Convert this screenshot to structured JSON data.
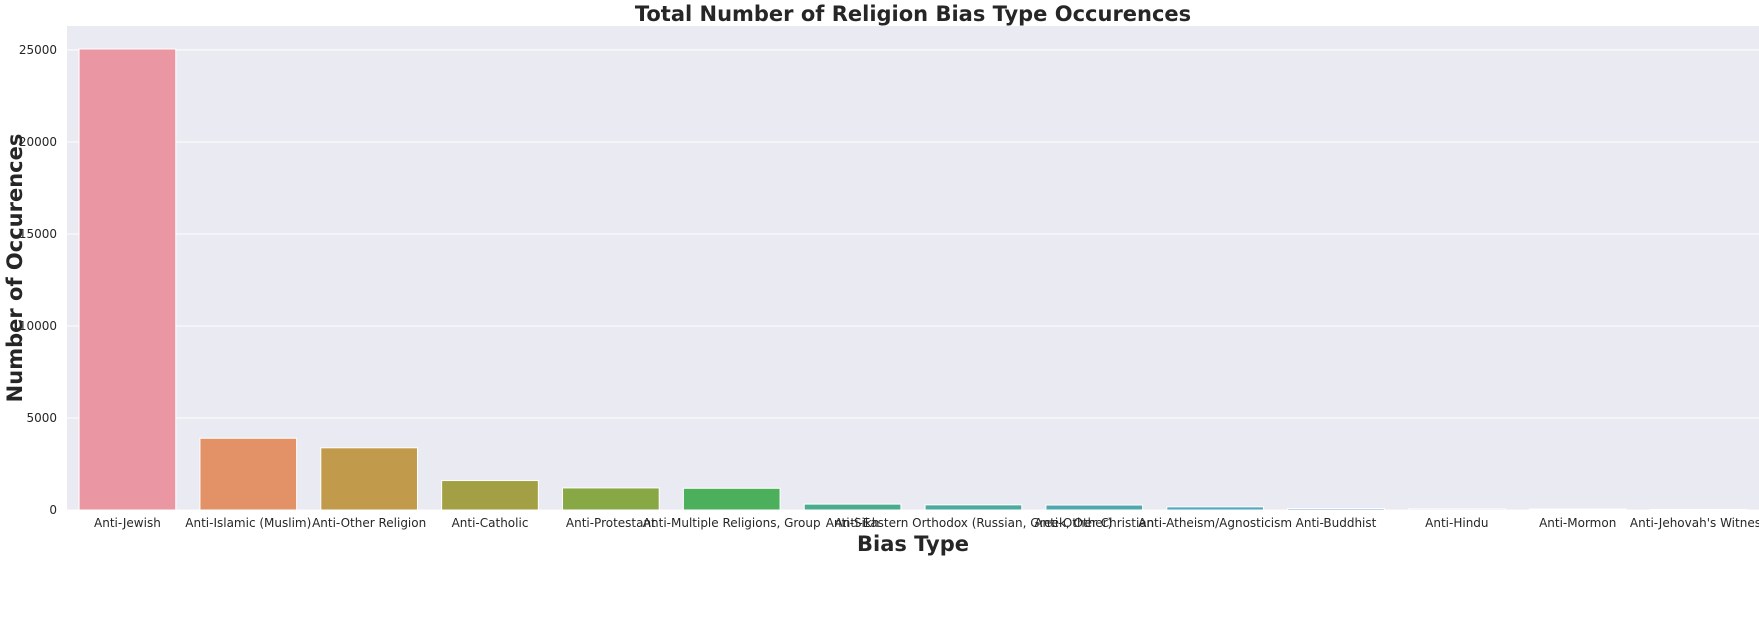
{
  "chart_data": {
    "type": "bar",
    "title": "Total Number of Religion Bias Type Occurences",
    "xlabel": "Bias Type",
    "ylabel": "Number of Occurences",
    "categories": [
      "Anti-Jewish",
      "Anti-Islamic (Muslim)",
      "Anti-Other Religion",
      "Anti-Catholic",
      "Anti-Protestant",
      "Anti-Multiple Religions, Group",
      "Anti-Sikh",
      "Anti-Eastern Orthodox (Russian, Greek, Other)",
      "Anti-Other Christian",
      "Anti-Atheism/Agnosticism",
      "Anti-Buddhist",
      "Anti-Hindu",
      "Anti-Mormon",
      "Anti-Jehovah's Witness"
    ],
    "values": [
      25050,
      3900,
      3380,
      1600,
      1200,
      1180,
      320,
      280,
      270,
      170,
      80,
      60,
      50,
      30
    ],
    "colors": [
      "#ea96a3",
      "#e39268",
      "#c19b4b",
      "#a39f44",
      "#88a845",
      "#4caf5c",
      "#4aac8c",
      "#4daa9f",
      "#4fa8ae",
      "#51a6c1",
      "#7ea2dc",
      "#a99ae8",
      "#d890e3",
      "#e590c4"
    ],
    "yticks": [
      "0",
      "5000",
      "10000",
      "15000",
      "20000",
      "25000"
    ],
    "ylim": [
      0,
      26300
    ],
    "grid": true,
    "background": "#eaeaf2",
    "grid_color": "#ffffff"
  }
}
